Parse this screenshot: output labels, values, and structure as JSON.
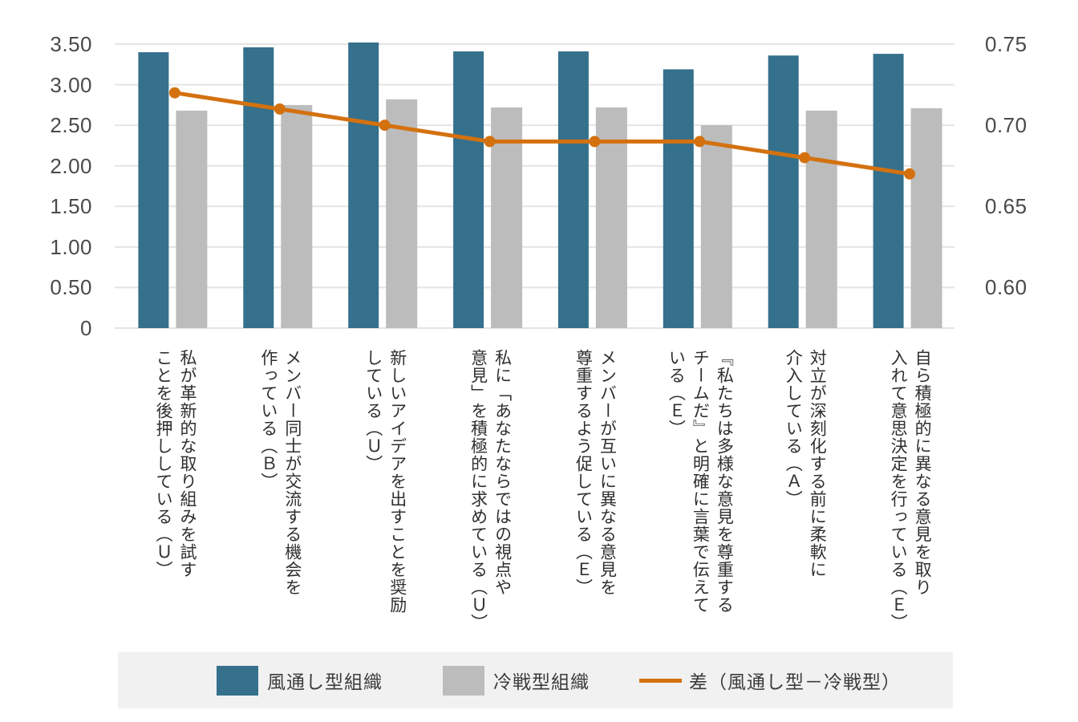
{
  "chart_data": {
    "type": "bar",
    "subtype": "grouped-bars-with-line-overlay",
    "categories": [
      {
        "lines": [
          "私が革新的な取り組みを試す",
          "ことを後押ししている（Ｕ）"
        ]
      },
      {
        "lines": [
          "メンバー同士が交流する機会を",
          "作っている（Ｂ）"
        ]
      },
      {
        "lines": [
          "新しいアイデアを出すことを奨励",
          "している（Ｕ）"
        ]
      },
      {
        "lines": [
          "私に「あなたならではの視点や",
          "意見」を積極的に求めている（Ｕ）"
        ]
      },
      {
        "lines": [
          "メンバーが互いに異なる意見を",
          "尊重するよう促している（Ｅ）"
        ]
      },
      {
        "lines": [
          "『私たちは多様な意見を尊重する",
          "チームだ』と明確に言葉で伝えて",
          "いる（Ｅ）"
        ]
      },
      {
        "lines": [
          "対立が深刻化する前に柔軟に",
          "介入している（Ａ）"
        ]
      },
      {
        "lines": [
          "自ら積極的に異なる意見を取り",
          "入れて意思決定を行っている（Ｅ）"
        ]
      }
    ],
    "series": [
      {
        "name": "風通し型組織",
        "type": "bar",
        "axis": "left",
        "color": "#35708c",
        "values": [
          3.4,
          3.46,
          3.52,
          3.41,
          3.41,
          3.19,
          3.36,
          3.38
        ]
      },
      {
        "name": "冷戦型組織",
        "type": "bar",
        "axis": "left",
        "color": "#bcbcbc",
        "values": [
          2.68,
          2.75,
          2.82,
          2.72,
          2.72,
          2.5,
          2.68,
          2.71
        ]
      },
      {
        "name": "差（風通し型－冷戦型）",
        "type": "line",
        "axis": "right",
        "color": "#d4710f",
        "values": [
          0.72,
          0.71,
          0.7,
          0.69,
          0.69,
          0.69,
          0.68,
          0.67
        ]
      }
    ],
    "left_axis": {
      "min": 0,
      "max": 3.5,
      "ticks": [
        "3.50",
        "3.00",
        "2.50",
        "2.00",
        "1.50",
        "1.00",
        "0.50",
        "0"
      ],
      "tick_values": [
        3.5,
        3.0,
        2.5,
        2.0,
        1.5,
        1.0,
        0.5,
        0
      ]
    },
    "right_axis": {
      "min": 0.575,
      "max": 0.75,
      "ticks": [
        "0.75",
        "0.70",
        "0.65",
        "0.60"
      ],
      "tick_values": [
        0.75,
        0.7,
        0.65,
        0.6
      ]
    },
    "grid": true,
    "legend_position": "bottom"
  },
  "style": {
    "grid_color": "#e4e4e4",
    "legend_background": "#f1f1f1",
    "tick_text_color": "#4a4a4a",
    "category_text_color": "#2f2f2f",
    "background": "#ffffff"
  }
}
